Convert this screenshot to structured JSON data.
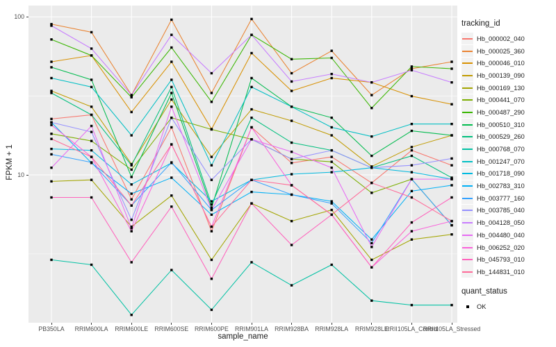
{
  "chart_data": {
    "type": "line",
    "ylabel": "FPKM + 1",
    "xlabel": "sample_name",
    "legend_title": "tracking_id",
    "x_categories": [
      "PB350LA",
      "RRIM600LA",
      "RRIM600LE",
      "RRIM600SE",
      "RRIM600PE",
      "RRIM901LA",
      "RRIM928BA",
      "RRIM928LA",
      "RRIM928LE",
      "RRII105LA_Control",
      "RRII105LA_Stressed"
    ],
    "y_scale": "log10",
    "ylim": [
      1.16,
      118
    ],
    "yticks": [
      100,
      10
    ],
    "y_minor_gridlines": [
      3.162,
      31.62
    ],
    "panel_bg": "#EBEBEB",
    "grid_color": "#FFFFFF",
    "marker": "black-square",
    "marker_color": "#000000",
    "series": [
      {
        "name": "Hb_000002_040",
        "color": "#F8766D",
        "values": [
          22.6,
          24,
          7.0,
          20,
          4.4,
          20,
          11.9,
          13,
          8.9,
          14.3,
          11.5
        ]
      },
      {
        "name": "Hb_000025_360",
        "color": "#EA8331",
        "values": [
          90,
          80,
          32,
          96,
          33,
          97,
          44,
          61,
          32,
          47,
          52
        ]
      },
      {
        "name": "Hb_000046_010",
        "color": "#D89000",
        "values": [
          52,
          57,
          25,
          52,
          19.5,
          59,
          34,
          41,
          38.5,
          31.5,
          28
        ]
      },
      {
        "name": "Hb_000139_090",
        "color": "#C09B00",
        "values": [
          34,
          27,
          11.7,
          30,
          13,
          26,
          22,
          17.8,
          11.3,
          15,
          17.8
        ]
      },
      {
        "name": "Hb_000169_130",
        "color": "#A3A500",
        "values": [
          9.1,
          9.3,
          4.7,
          7.4,
          2.9,
          6.6,
          5.1,
          6.0,
          2.9,
          3.9,
          4.2
        ]
      },
      {
        "name": "Hb_000441_070",
        "color": "#7CAE00",
        "values": [
          18.2,
          16.4,
          10.8,
          23,
          19.4,
          16.8,
          12.6,
          12.1,
          7.7,
          9.4,
          4.8
        ]
      },
      {
        "name": "Hb_000487_290",
        "color": "#39B600",
        "values": [
          72,
          57,
          31,
          64,
          29,
          77,
          54,
          55,
          26.5,
          48.5,
          47
        ]
      },
      {
        "name": "Hb_000510_310",
        "color": "#00BB4E",
        "values": [
          48,
          40,
          9.7,
          33,
          6.2,
          41,
          27,
          23,
          13.2,
          19,
          17.8
        ]
      },
      {
        "name": "Hb_000529_260",
        "color": "#00BF7D",
        "values": [
          33,
          24,
          11.5,
          36,
          6.5,
          23,
          16,
          14.3,
          11.1,
          13.2,
          9.6
        ]
      },
      {
        "name": "Hb_000768_070",
        "color": "#00C1A3",
        "values": [
          2.9,
          2.7,
          1.3,
          2.5,
          1.4,
          2.8,
          2.0,
          2.7,
          1.6,
          1.5,
          1.5
        ]
      },
      {
        "name": "Hb_001247_070",
        "color": "#00BFC4",
        "values": [
          41,
          36,
          17.8,
          40,
          11.5,
          36,
          27,
          20,
          17.5,
          21,
          21
        ]
      },
      {
        "name": "Hb_001718_090",
        "color": "#00BAE0",
        "values": [
          14.6,
          14.3,
          8.7,
          11.9,
          6.8,
          9.3,
          10.1,
          10.4,
          11.1,
          10.4,
          9.4
        ]
      },
      {
        "name": "Hb_002783_310",
        "color": "#00B0F6",
        "values": [
          21.5,
          11.9,
          7.6,
          9.6,
          5.6,
          7.8,
          7.5,
          6.8,
          3.9,
          7.9,
          8.6
        ]
      },
      {
        "name": "Hb_003777_160",
        "color": "#35A2FF",
        "values": [
          13.5,
          12,
          6.4,
          12,
          6.0,
          9.3,
          7.5,
          6.6,
          3.7,
          9.4,
          4.8
        ]
      },
      {
        "name": "Hb_003785_040",
        "color": "#9590FF",
        "values": [
          21.5,
          18.7,
          5.2,
          23,
          9.3,
          16.8,
          12.6,
          14.3,
          11.1,
          11.5,
          12.7
        ]
      },
      {
        "name": "Hb_004128_050",
        "color": "#C77CFF",
        "values": [
          88,
          63,
          32,
          77,
          44,
          77,
          39,
          43.5,
          38.5,
          46,
          38.5
        ]
      },
      {
        "name": "Hb_004480_040",
        "color": "#E76BF3",
        "values": [
          11.1,
          20.4,
          4.6,
          27,
          6.0,
          16.8,
          14,
          11.1,
          3.5,
          9.4,
          9.4
        ]
      },
      {
        "name": "Hb_006252_020",
        "color": "#FA62DB",
        "values": [
          20.7,
          13,
          4.4,
          15.6,
          4.7,
          20,
          8.6,
          5.6,
          2.6,
          4.4,
          5.1
        ]
      },
      {
        "name": "Hb_045793_010",
        "color": "#FF62BC",
        "values": [
          7.2,
          7.2,
          2.8,
          6.3,
          2.2,
          6.6,
          3.6,
          5.6,
          2.6,
          5.0,
          7.2
        ]
      },
      {
        "name": "Hb_144831_010",
        "color": "#FF6A98",
        "values": [
          16.9,
          13,
          6.4,
          15.6,
          4.7,
          9.3,
          8.6,
          5.6,
          8.9,
          7.2,
          5.1
        ]
      }
    ],
    "quant_status": {
      "title": "quant_status",
      "items": [
        {
          "label": "OK",
          "marker": "black-square"
        }
      ]
    }
  }
}
